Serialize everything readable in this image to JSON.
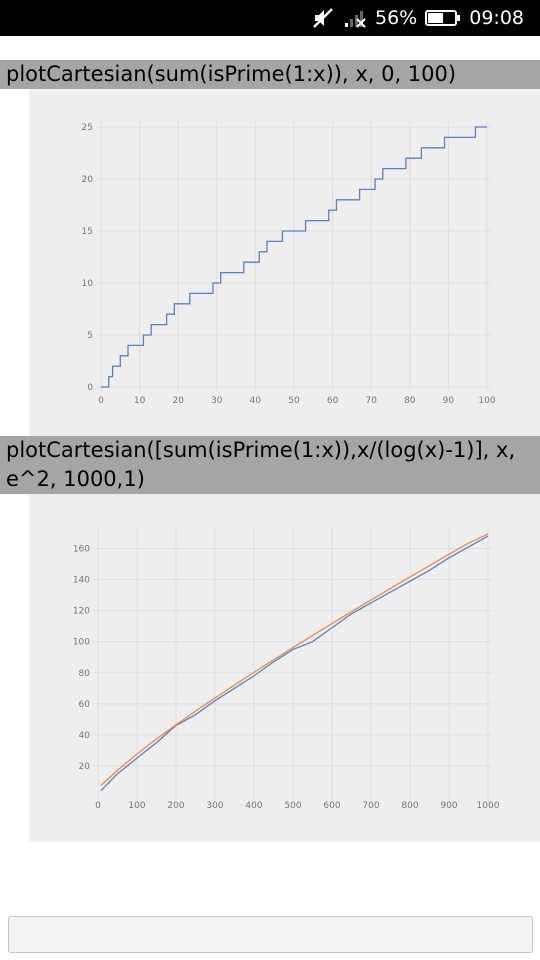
{
  "status_bar": {
    "battery_percent": "56%",
    "time": "09:08",
    "icons": [
      "mute-icon",
      "signal-icon",
      "battery-icon"
    ]
  },
  "commands": [
    "plotCartesian(sum(isPrime(1:x)), x, 0, 100)",
    "plotCartesian([sum(isPrime(1:x)),x/(log(x)-1)], x, e^2, 1000,1)"
  ],
  "colors": {
    "series_prime_count": "#5b7ec9",
    "series_approx": "#f0883e",
    "grid": "#dddddd",
    "panel": "#eeeeee",
    "command_bg": "#a5a5a5"
  },
  "chart_data": [
    {
      "type": "line",
      "title": "",
      "xlabel": "",
      "ylabel": "",
      "xlim": [
        0,
        100
      ],
      "ylim": [
        0,
        25
      ],
      "xticks": [
        "0",
        "10",
        "20",
        "30",
        "40",
        "50",
        "60",
        "70",
        "80",
        "90",
        "100"
      ],
      "yticks": [
        "0",
        "5",
        "10",
        "15",
        "20",
        "25"
      ],
      "series": [
        {
          "values": [
            [
              0,
              0
            ],
            [
              2,
              1
            ],
            [
              3,
              2
            ],
            [
              5,
              3
            ],
            [
              7,
              4
            ],
            [
              11,
              5
            ],
            [
              13,
              6
            ],
            [
              17,
              7
            ],
            [
              19,
              8
            ],
            [
              23,
              9
            ],
            [
              29,
              10
            ],
            [
              31,
              11
            ],
            [
              37,
              12
            ],
            [
              41,
              13
            ],
            [
              43,
              14
            ],
            [
              47,
              15
            ],
            [
              53,
              16
            ],
            [
              59,
              17
            ],
            [
              61,
              18
            ],
            [
              67,
              19
            ],
            [
              71,
              20
            ],
            [
              73,
              21
            ],
            [
              79,
              22
            ],
            [
              83,
              23
            ],
            [
              89,
              24
            ],
            [
              97,
              25
            ],
            [
              100,
              25
            ]
          ]
        }
      ],
      "step": true
    },
    {
      "type": "line",
      "title": "",
      "xlabel": "",
      "ylabel": "",
      "xlim": [
        0,
        1000
      ],
      "ylim": [
        0,
        170
      ],
      "xticks": [
        "0",
        "100",
        "200",
        "300",
        "400",
        "500",
        "600",
        "700",
        "800",
        "900",
        "1000"
      ],
      "yticks": [
        "20",
        "40",
        "60",
        "80",
        "100",
        "120",
        "140",
        "160"
      ],
      "series": [
        {
          "values": [
            [
              7.4,
              4
            ],
            [
              50,
              15
            ],
            [
              100,
              25
            ],
            [
              150,
              35
            ],
            [
              200,
              46
            ],
            [
              250,
              53
            ],
            [
              300,
              62
            ],
            [
              350,
              70
            ],
            [
              400,
              78
            ],
            [
              450,
              87
            ],
            [
              500,
              95
            ],
            [
              550,
              100
            ],
            [
              600,
              109
            ],
            [
              650,
              118
            ],
            [
              700,
              125
            ],
            [
              750,
              132
            ],
            [
              800,
              139
            ],
            [
              850,
              146
            ],
            [
              900,
              154
            ],
            [
              950,
              161
            ],
            [
              1000,
              168
            ]
          ]
        },
        {
          "values": [
            [
              7.4,
              7.4
            ],
            [
              50,
              17.2
            ],
            [
              100,
              27.7
            ],
            [
              150,
              37.4
            ],
            [
              200,
              46.5
            ],
            [
              250,
              55.3
            ],
            [
              300,
              63.8
            ],
            [
              350,
              72.1
            ],
            [
              400,
              80.3
            ],
            [
              450,
              88.3
            ],
            [
              500,
              96.2
            ],
            [
              550,
              104.0
            ],
            [
              600,
              111.7
            ],
            [
              650,
              119.3
            ],
            [
              700,
              126.8
            ],
            [
              750,
              134.3
            ],
            [
              800,
              141.7
            ],
            [
              850,
              149.0
            ],
            [
              900,
              156.3
            ],
            [
              950,
              163.5
            ],
            [
              1000,
              169.3
            ]
          ]
        }
      ]
    }
  ]
}
